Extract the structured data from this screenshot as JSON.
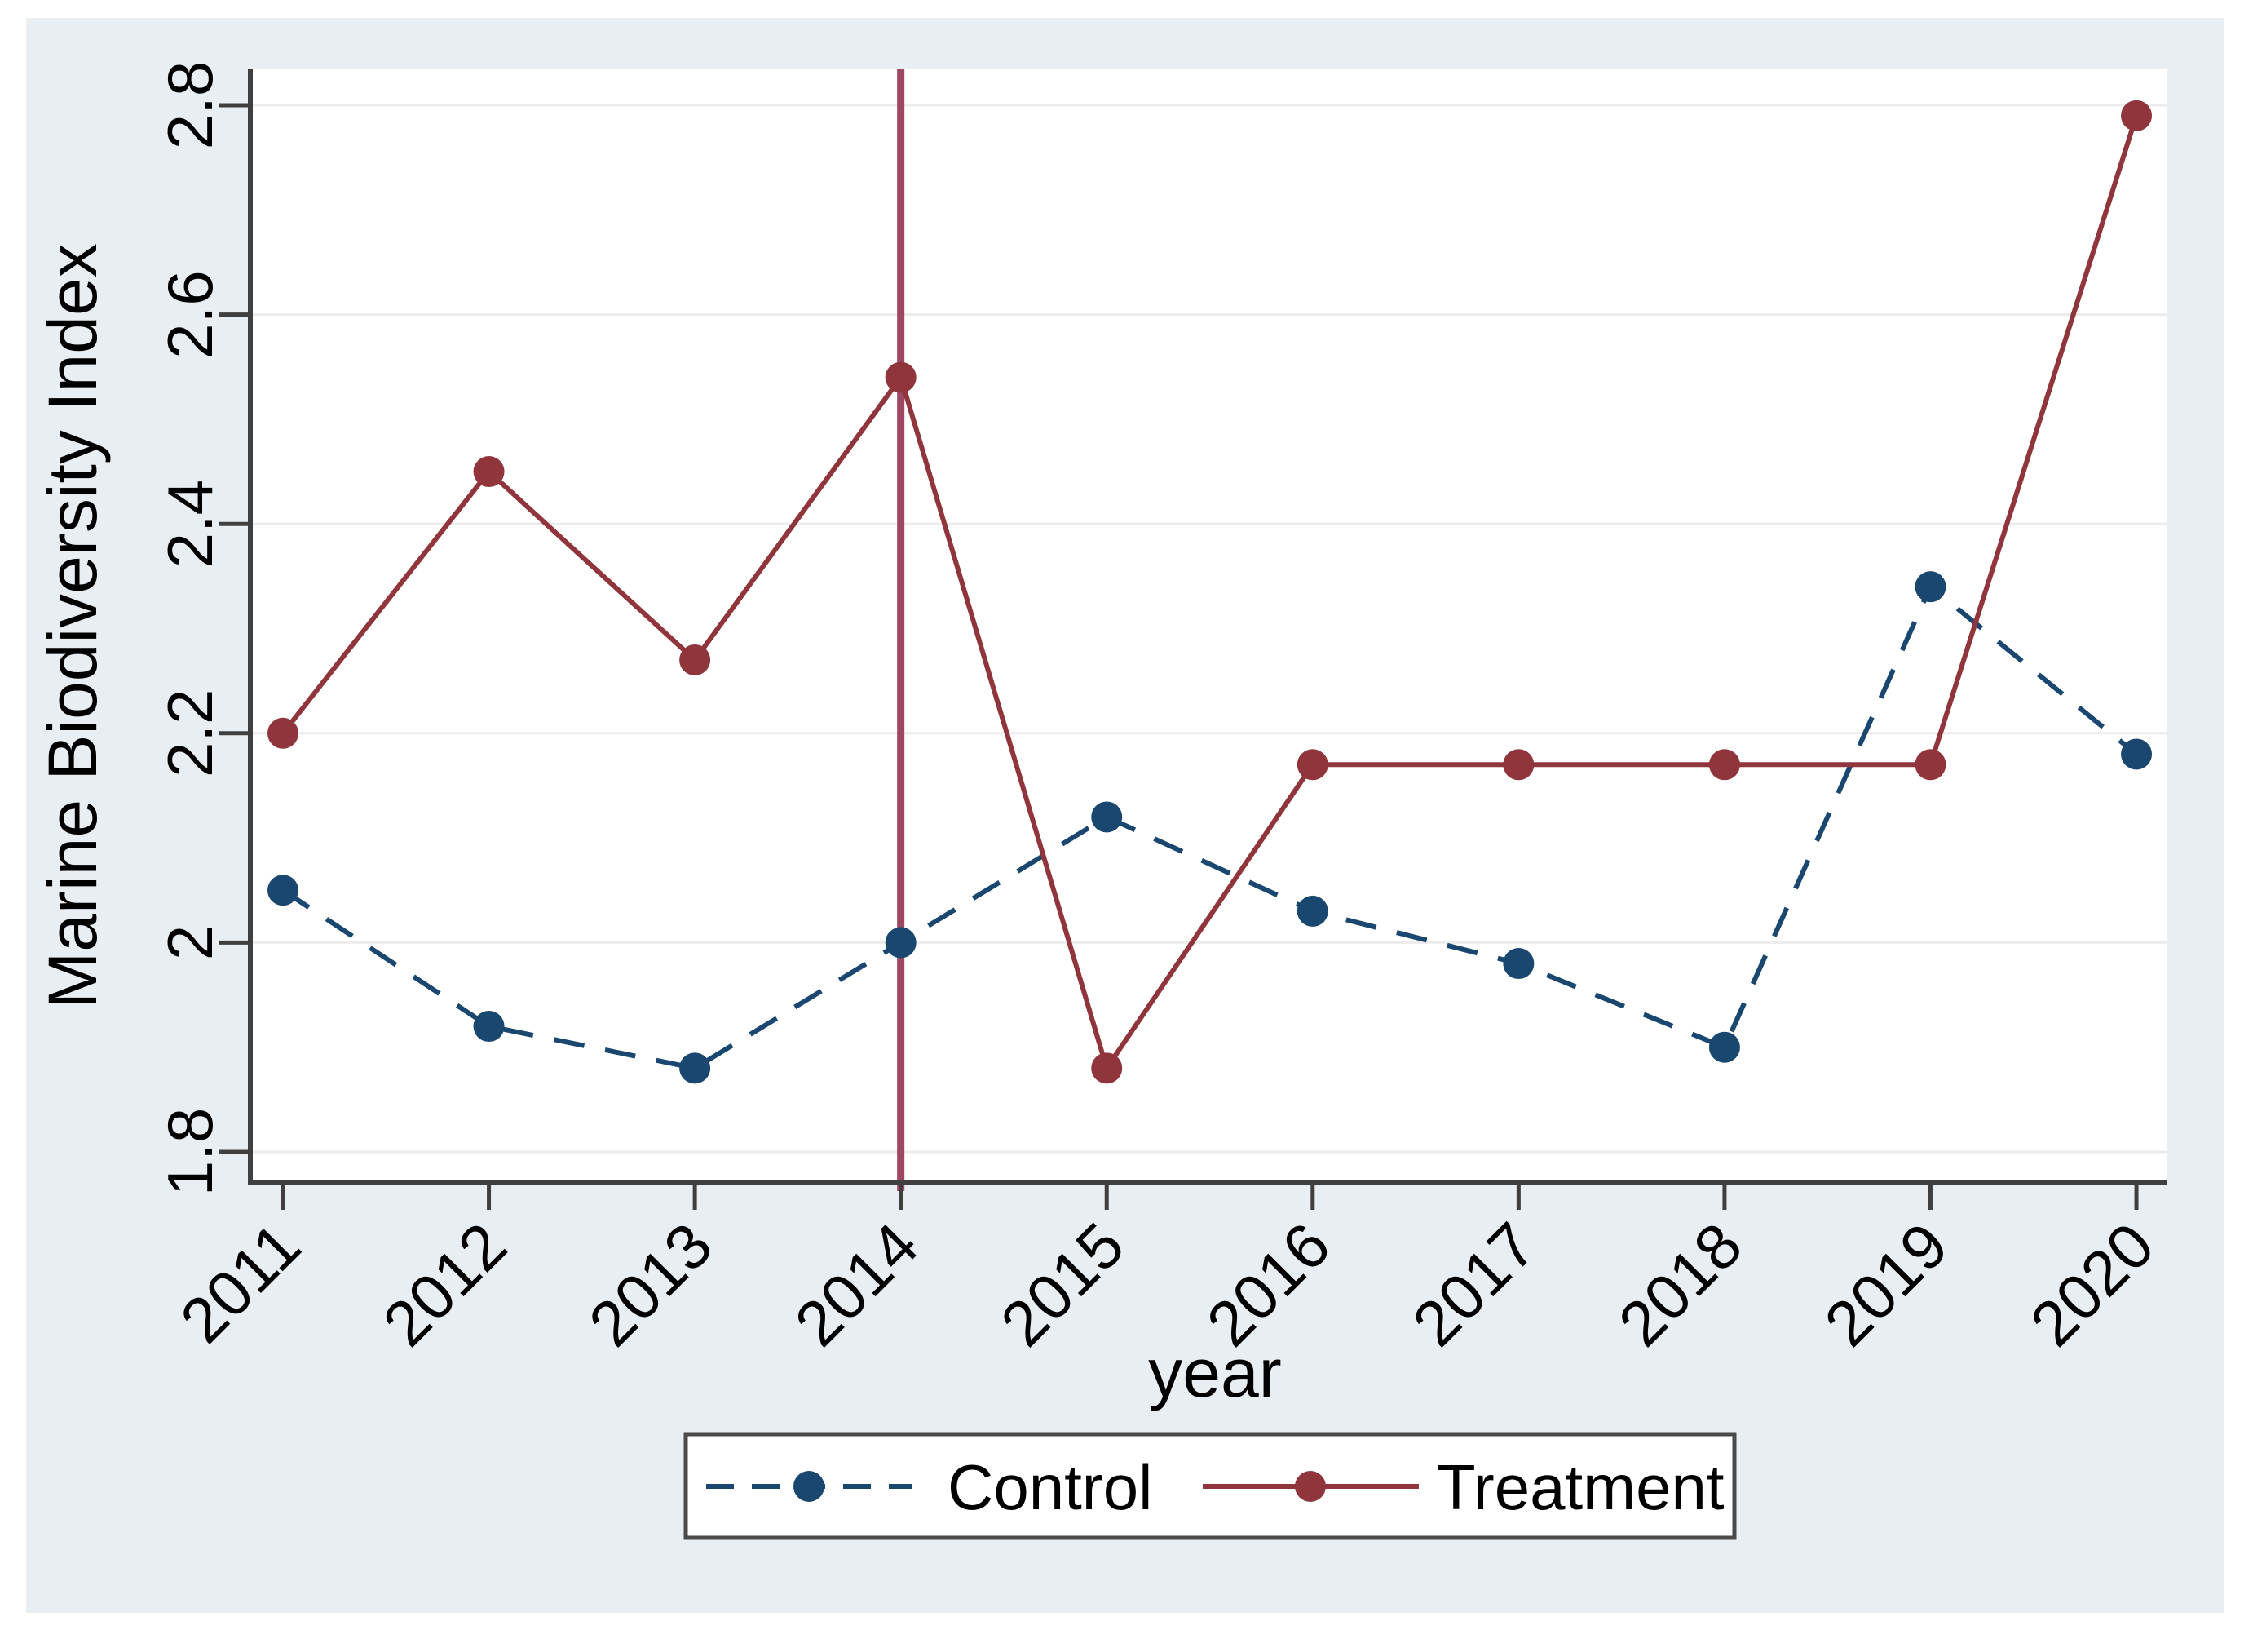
{
  "chart_data": {
    "type": "line",
    "title": "",
    "xlabel": "year",
    "ylabel": "Marine Biodiversity Index",
    "categories": [
      2011,
      2012,
      2013,
      2014,
      2015,
      2016,
      2017,
      2018,
      2019,
      2020
    ],
    "x_tick_labels": [
      "2011",
      "2012",
      "2013",
      "2014",
      "2015",
      "2016",
      "2017",
      "2018",
      "2019",
      "2020"
    ],
    "y_ticks": [
      1.8,
      2.0,
      2.2,
      2.4,
      2.6,
      2.8
    ],
    "y_tick_labels": [
      "1.8",
      "2",
      "2.2",
      "2.4",
      "2.6",
      "2.8"
    ],
    "ylim": [
      1.77,
      2.84
    ],
    "grid": "horizontal",
    "legend_position": "bottom-center",
    "series": [
      {
        "name": "Control",
        "color": "#1a476f",
        "line_style": "dashed",
        "marker": "circle",
        "values": [
          2.05,
          1.92,
          1.88,
          2.0,
          2.12,
          2.03,
          1.98,
          1.9,
          2.34,
          2.18
        ]
      },
      {
        "name": "Treatment",
        "color": "#90353b",
        "line_style": "solid",
        "marker": "circle",
        "values": [
          2.2,
          2.45,
          2.27,
          2.54,
          1.88,
          2.17,
          2.17,
          2.17,
          2.17,
          2.79
        ]
      }
    ],
    "reference_line": {
      "x": 2014,
      "color": "#9d4762"
    }
  },
  "style_colors": {
    "canvas_bg": "#e8eef2",
    "plot_bg": "#ffffff",
    "grid": "#ececec",
    "axis": "#3f3f3f",
    "text": "#000000",
    "legend_border": "#4a4a4a"
  }
}
